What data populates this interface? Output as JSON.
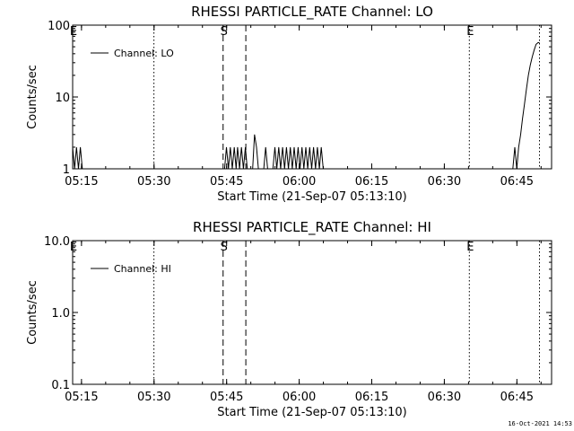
{
  "footer_timestamp": "16-Oct-2021 14:53",
  "chart_data": [
    {
      "type": "line",
      "title": "RHESSI PARTICLE_RATE Channel: LO",
      "xlabel": "Start Time (21-Sep-07 05:13:10)",
      "ylabel": "Counts/sec",
      "x_unit": "minutes after 05:13:10",
      "xlim": [
        0,
        99
      ],
      "ylim": [
        1,
        100
      ],
      "yscale": "log",
      "x_ticks": [
        {
          "label": "05:15",
          "value": 1.83
        },
        {
          "label": "05:30",
          "value": 16.83
        },
        {
          "label": "05:45",
          "value": 31.83
        },
        {
          "label": "06:00",
          "value": 46.83
        },
        {
          "label": "06:15",
          "value": 61.83
        },
        {
          "label": "06:30",
          "value": 76.83
        },
        {
          "label": "06:45",
          "value": 91.83
        }
      ],
      "y_ticks": [
        {
          "label": "1",
          "value": 1
        },
        {
          "label": "10",
          "value": 10
        },
        {
          "label": "100",
          "value": 100
        }
      ],
      "legend": {
        "label": "Channel: LO",
        "position": "top-left"
      },
      "markers": [
        {
          "label": "E",
          "x": 0,
          "style": "dotted"
        },
        {
          "label": "",
          "x": 16.8,
          "style": "dotted"
        },
        {
          "label": "S",
          "x": 31.1,
          "style": "dashed"
        },
        {
          "label": "",
          "x": 35.8,
          "style": "dashed"
        },
        {
          "label": "E",
          "x": 82.0,
          "style": "dotted"
        },
        {
          "label": "",
          "x": 96.5,
          "style": "dotted"
        }
      ],
      "series": [
        {
          "values": [
            [
              0,
              2
            ],
            [
              0.4,
              1
            ],
            [
              0.8,
              2
            ],
            [
              1.2,
              1
            ],
            [
              1.6,
              2
            ],
            [
              2.0,
              1
            ],
            [
              31.4,
              1
            ],
            [
              31.8,
              2
            ],
            [
              32.2,
              1
            ],
            [
              32.6,
              2
            ],
            [
              33.0,
              1
            ],
            [
              33.4,
              2
            ],
            [
              33.8,
              1
            ],
            [
              34.1,
              2
            ],
            [
              34.5,
              1
            ],
            [
              34.9,
              2
            ],
            [
              35.3,
              1
            ],
            [
              35.7,
              2
            ],
            [
              36.1,
              1
            ],
            [
              37.2,
              1
            ],
            [
              37.6,
              3
            ],
            [
              38.0,
              2
            ],
            [
              38.4,
              1
            ],
            [
              39.5,
              1
            ],
            [
              39.9,
              2
            ],
            [
              40.3,
              1
            ],
            [
              41.4,
              1
            ],
            [
              41.8,
              2
            ],
            [
              42.2,
              1
            ],
            [
              42.6,
              2
            ],
            [
              43.0,
              1
            ],
            [
              43.4,
              2
            ],
            [
              43.8,
              1
            ],
            [
              44.2,
              2
            ],
            [
              44.6,
              1
            ],
            [
              45.0,
              2
            ],
            [
              45.4,
              1
            ],
            [
              45.8,
              2
            ],
            [
              46.2,
              1
            ],
            [
              46.6,
              2
            ],
            [
              47.0,
              1
            ],
            [
              47.4,
              2
            ],
            [
              47.8,
              1
            ],
            [
              48.2,
              2
            ],
            [
              48.6,
              1
            ],
            [
              49.0,
              2
            ],
            [
              49.4,
              1
            ],
            [
              49.8,
              2
            ],
            [
              50.2,
              1
            ],
            [
              50.6,
              2
            ],
            [
              51.0,
              1
            ],
            [
              51.4,
              2
            ],
            [
              51.8,
              1
            ],
            [
              91.0,
              1
            ],
            [
              91.4,
              2
            ],
            [
              91.8,
              1
            ],
            [
              92.2,
              2
            ],
            [
              92.6,
              3
            ],
            [
              93.0,
              5
            ],
            [
              93.4,
              8
            ],
            [
              93.8,
              13
            ],
            [
              94.2,
              20
            ],
            [
              94.6,
              28
            ],
            [
              95.0,
              36
            ],
            [
              95.4,
              45
            ],
            [
              95.8,
              54
            ],
            [
              96.2,
              57
            ],
            [
              96.5,
              57
            ]
          ]
        }
      ]
    },
    {
      "type": "line",
      "title": "RHESSI PARTICLE_RATE Channel: HI",
      "xlabel": "Start Time (21-Sep-07 05:13:10)",
      "ylabel": "Counts/sec",
      "x_unit": "minutes after 05:13:10",
      "xlim": [
        0,
        99
      ],
      "ylim": [
        0.1,
        10
      ],
      "yscale": "log",
      "x_ticks": [
        {
          "label": "05:15",
          "value": 1.83
        },
        {
          "label": "05:30",
          "value": 16.83
        },
        {
          "label": "05:45",
          "value": 31.83
        },
        {
          "label": "06:00",
          "value": 46.83
        },
        {
          "label": "06:15",
          "value": 61.83
        },
        {
          "label": "06:30",
          "value": 76.83
        },
        {
          "label": "06:45",
          "value": 91.83
        }
      ],
      "y_ticks": [
        {
          "label": "0.1",
          "value": 0.1
        },
        {
          "label": "1.0",
          "value": 1
        },
        {
          "label": "10.0",
          "value": 10
        }
      ],
      "legend": {
        "label": "Channel: HI",
        "position": "top-left"
      },
      "markers": [
        {
          "label": "E",
          "x": 0,
          "style": "dotted"
        },
        {
          "label": "",
          "x": 16.8,
          "style": "dotted"
        },
        {
          "label": "S",
          "x": 31.1,
          "style": "dashed"
        },
        {
          "label": "",
          "x": 35.8,
          "style": "dashed"
        },
        {
          "label": "E",
          "x": 82.0,
          "style": "dotted"
        },
        {
          "label": "",
          "x": 96.5,
          "style": "dotted"
        }
      ],
      "series": [
        {
          "values": []
        }
      ]
    }
  ]
}
